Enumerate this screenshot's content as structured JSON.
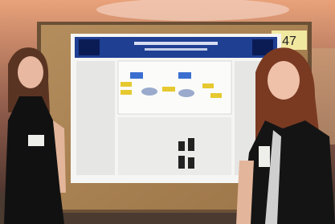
{
  "board_number": "47"
}
